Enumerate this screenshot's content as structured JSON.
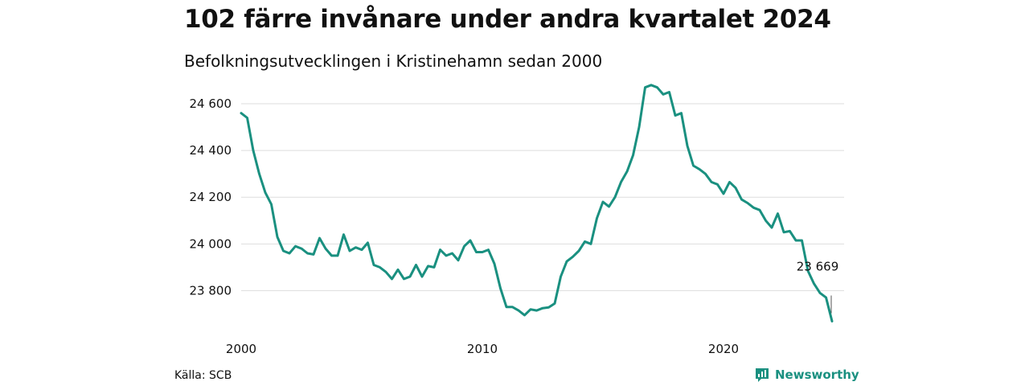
{
  "title": "102 färre invånare under andra kvartalet 2024",
  "subtitle": "Befolkningsutvecklingen i Kristinehamn sedan 2000",
  "source": "Källa: SCB",
  "brand": {
    "name": "Newsworthy",
    "icon": "newsworthy-logo-icon",
    "color": "#1a9080"
  },
  "colors": {
    "line": "#1a9080",
    "grid": "#dddddd"
  },
  "chart_data": {
    "type": "line",
    "title": "102 färre invånare under andra kvartalet 2024",
    "subtitle": "Befolkningsutvecklingen i Kristinehamn sedan 2000",
    "xlabel": "",
    "ylabel": "",
    "xlim": [
      2000,
      2025
    ],
    "ylim": [
      23650,
      24700
    ],
    "x_ticks": [
      {
        "value": 2000,
        "label": "2000"
      },
      {
        "value": 2010,
        "label": "2010"
      },
      {
        "value": 2020,
        "label": "2020"
      }
    ],
    "y_ticks": [
      {
        "value": 23800,
        "label": "23 800"
      },
      {
        "value": 24000,
        "label": "24 000"
      },
      {
        "value": 24200,
        "label": "24 200"
      },
      {
        "value": 24400,
        "label": "24 400"
      },
      {
        "value": 24600,
        "label": "24 600"
      }
    ],
    "grid": "horizontal",
    "legend": "none",
    "annotation": {
      "text": "23 669",
      "x": 2024.5,
      "y": 23669
    },
    "series": [
      {
        "x": [
          2000.0,
          2000.25,
          2000.5,
          2000.75,
          2001.0,
          2001.25,
          2001.5,
          2001.75,
          2002.0,
          2002.25,
          2002.5,
          2002.75,
          2003.0,
          2003.25,
          2003.5,
          2003.75,
          2004.0,
          2004.25,
          2004.5,
          2004.75,
          2005.0,
          2005.25,
          2005.5,
          2005.75,
          2006.0,
          2006.25,
          2006.5,
          2006.75,
          2007.0,
          2007.25,
          2007.5,
          2007.75,
          2008.0,
          2008.25,
          2008.5,
          2008.75,
          2009.0,
          2009.25,
          2009.5,
          2009.75,
          2010.0,
          2010.25,
          2010.5,
          2010.75,
          2011.0,
          2011.25,
          2011.5,
          2011.75,
          2012.0,
          2012.25,
          2012.5,
          2012.75,
          2013.0,
          2013.25,
          2013.5,
          2013.75,
          2014.0,
          2014.25,
          2014.5,
          2014.75,
          2015.0,
          2015.25,
          2015.5,
          2015.75,
          2016.0,
          2016.25,
          2016.5,
          2016.75,
          2017.0,
          2017.25,
          2017.5,
          2017.75,
          2018.0,
          2018.25,
          2018.5,
          2018.75,
          2019.0,
          2019.25,
          2019.5,
          2019.75,
          2020.0,
          2020.25,
          2020.5,
          2020.75,
          2021.0,
          2021.25,
          2021.5,
          2021.75,
          2022.0,
          2022.25,
          2022.5,
          2022.75,
          2023.0,
          2023.25,
          2023.5,
          2023.75,
          2024.0,
          2024.25,
          2024.5
        ],
        "y": [
          24560,
          24540,
          24400,
          24300,
          24220,
          24170,
          24030,
          23970,
          23960,
          23990,
          23980,
          23960,
          23955,
          24025,
          23980,
          23950,
          23950,
          24040,
          23970,
          23985,
          23975,
          24005,
          23910,
          23900,
          23880,
          23850,
          23890,
          23850,
          23860,
          23910,
          23860,
          23905,
          23900,
          23975,
          23950,
          23960,
          23930,
          23990,
          24015,
          23965,
          23965,
          23975,
          23915,
          23810,
          23730,
          23730,
          23715,
          23695,
          23720,
          23715,
          23725,
          23728,
          23745,
          23860,
          23925,
          23945,
          23970,
          24010,
          24000,
          24110,
          24180,
          24160,
          24200,
          24265,
          24310,
          24380,
          24500,
          24670,
          24680,
          24670,
          24640,
          24650,
          24550,
          24560,
          24420,
          24335,
          24320,
          24300,
          24265,
          24255,
          24215,
          24265,
          24240,
          24190,
          24175,
          24155,
          24145,
          24100,
          24070,
          24130,
          24050,
          24055,
          24015,
          24015,
          23885,
          23830,
          23790,
          23771,
          23669
        ]
      }
    ]
  }
}
